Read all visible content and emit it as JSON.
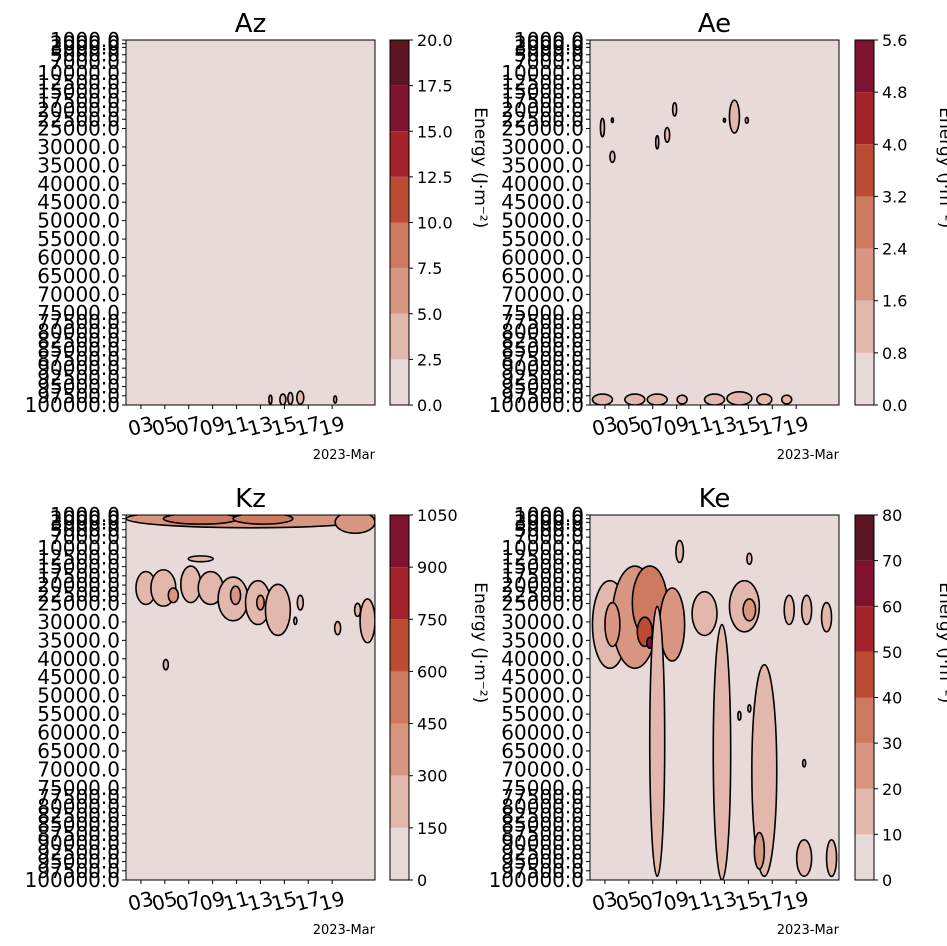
{
  "chart_data": [
    {
      "type": "heatmap",
      "title": "Az",
      "xlabel": "2023-Mar",
      "ylabel": "",
      "colorbar_label": "Energy (J·m⁻²)",
      "x_ticks": [
        "03",
        "05",
        "07",
        "09",
        "11",
        "13",
        "15",
        "17",
        "19"
      ],
      "y_ticks": [
        "1000.0",
        "2000.0",
        "3000.0",
        "5000.0",
        "7000.0",
        "10000.0",
        "12500.0",
        "15000.0",
        "17500.0",
        "20000.0",
        "22500.0",
        "25000.0",
        "30000.0",
        "35000.0",
        "40000.0",
        "45000.0",
        "50000.0",
        "55000.0",
        "60000.0",
        "65000.0",
        "70000.0",
        "75000.0",
        "77500.0",
        "80000.0",
        "82500.0",
        "85000.0",
        "87500.0",
        "90000.0",
        "92500.0",
        "95000.0",
        "97500.0",
        "100000.0"
      ],
      "ylim": [
        100000,
        1000
      ],
      "colorbar_ticks": [
        "0.0",
        "2.5",
        "5.0",
        "7.5",
        "10.0",
        "12.5",
        "15.0",
        "17.5",
        "20.0"
      ],
      "colorbar_range": [
        0,
        20
      ],
      "colors": [
        "#e8dad8",
        "#e2b8ac",
        "#d89580",
        "#cd7a60",
        "#bc4b33",
        "#a2242a",
        "#7f1230",
        "#5c1623"
      ]
    },
    {
      "type": "heatmap",
      "title": "Ae",
      "xlabel": "2023-Mar",
      "ylabel": "",
      "colorbar_label": "Energy (J·m⁻²)",
      "x_ticks": [
        "03",
        "05",
        "07",
        "09",
        "11",
        "13",
        "15",
        "17",
        "19"
      ],
      "y_ticks": [
        "1000.0",
        "2000.0",
        "3000.0",
        "5000.0",
        "7000.0",
        "10000.0",
        "12500.0",
        "15000.0",
        "17500.0",
        "20000.0",
        "22500.0",
        "25000.0",
        "30000.0",
        "35000.0",
        "40000.0",
        "45000.0",
        "50000.0",
        "55000.0",
        "60000.0",
        "65000.0",
        "70000.0",
        "75000.0",
        "77500.0",
        "80000.0",
        "82500.0",
        "85000.0",
        "87500.0",
        "90000.0",
        "92500.0",
        "95000.0",
        "97500.0",
        "100000.0"
      ],
      "ylim": [
        100000,
        1000
      ],
      "colorbar_ticks": [
        "0.0",
        "0.8",
        "1.6",
        "2.4",
        "3.2",
        "4.0",
        "4.8",
        "5.6"
      ],
      "colorbar_range": [
        0,
        5.6
      ],
      "colors": [
        "#e8dad8",
        "#e2b8ac",
        "#d89580",
        "#cd7a60",
        "#bc4b33",
        "#a2242a",
        "#7f1230"
      ]
    },
    {
      "type": "heatmap",
      "title": "Kz",
      "xlabel": "2023-Mar",
      "ylabel": "",
      "colorbar_label": "Energy (J·m⁻²)",
      "x_ticks": [
        "03",
        "05",
        "07",
        "09",
        "11",
        "13",
        "15",
        "17",
        "19"
      ],
      "y_ticks": [
        "1000.0",
        "2000.0",
        "3000.0",
        "5000.0",
        "7000.0",
        "10000.0",
        "12500.0",
        "15000.0",
        "17500.0",
        "20000.0",
        "22500.0",
        "25000.0",
        "30000.0",
        "35000.0",
        "40000.0",
        "45000.0",
        "50000.0",
        "55000.0",
        "60000.0",
        "65000.0",
        "70000.0",
        "75000.0",
        "77500.0",
        "80000.0",
        "82500.0",
        "85000.0",
        "87500.0",
        "90000.0",
        "92500.0",
        "95000.0",
        "97500.0",
        "100000.0"
      ],
      "ylim": [
        100000,
        1000
      ],
      "colorbar_ticks": [
        "0",
        "150",
        "300",
        "450",
        "600",
        "750",
        "900",
        "1050"
      ],
      "colorbar_range": [
        0,
        1050
      ],
      "colors": [
        "#e8dad8",
        "#e2b8ac",
        "#d89580",
        "#cd7a60",
        "#bc4b33",
        "#a2242a",
        "#7f1230"
      ]
    },
    {
      "type": "heatmap",
      "title": "Ke",
      "xlabel": "2023-Mar",
      "ylabel": "",
      "colorbar_label": "Energy (J·m⁻²)",
      "x_ticks": [
        "03",
        "05",
        "07",
        "09",
        "11",
        "13",
        "15",
        "17",
        "19"
      ],
      "y_ticks": [
        "1000.0",
        "2000.0",
        "3000.0",
        "5000.0",
        "7000.0",
        "10000.0",
        "12500.0",
        "15000.0",
        "17500.0",
        "20000.0",
        "22500.0",
        "25000.0",
        "30000.0",
        "35000.0",
        "40000.0",
        "45000.0",
        "50000.0",
        "55000.0",
        "60000.0",
        "65000.0",
        "70000.0",
        "75000.0",
        "77500.0",
        "80000.0",
        "82500.0",
        "85000.0",
        "87500.0",
        "90000.0",
        "92500.0",
        "95000.0",
        "97500.0",
        "100000.0"
      ],
      "ylim": [
        100000,
        1000
      ],
      "colorbar_ticks": [
        "0",
        "10",
        "20",
        "30",
        "40",
        "50",
        "60",
        "70",
        "80"
      ],
      "colorbar_range": [
        0,
        80
      ],
      "colors": [
        "#e8dad8",
        "#e2b8ac",
        "#d89580",
        "#cd7a60",
        "#bc4b33",
        "#a2242a",
        "#7f1230",
        "#5c1623"
      ]
    }
  ]
}
